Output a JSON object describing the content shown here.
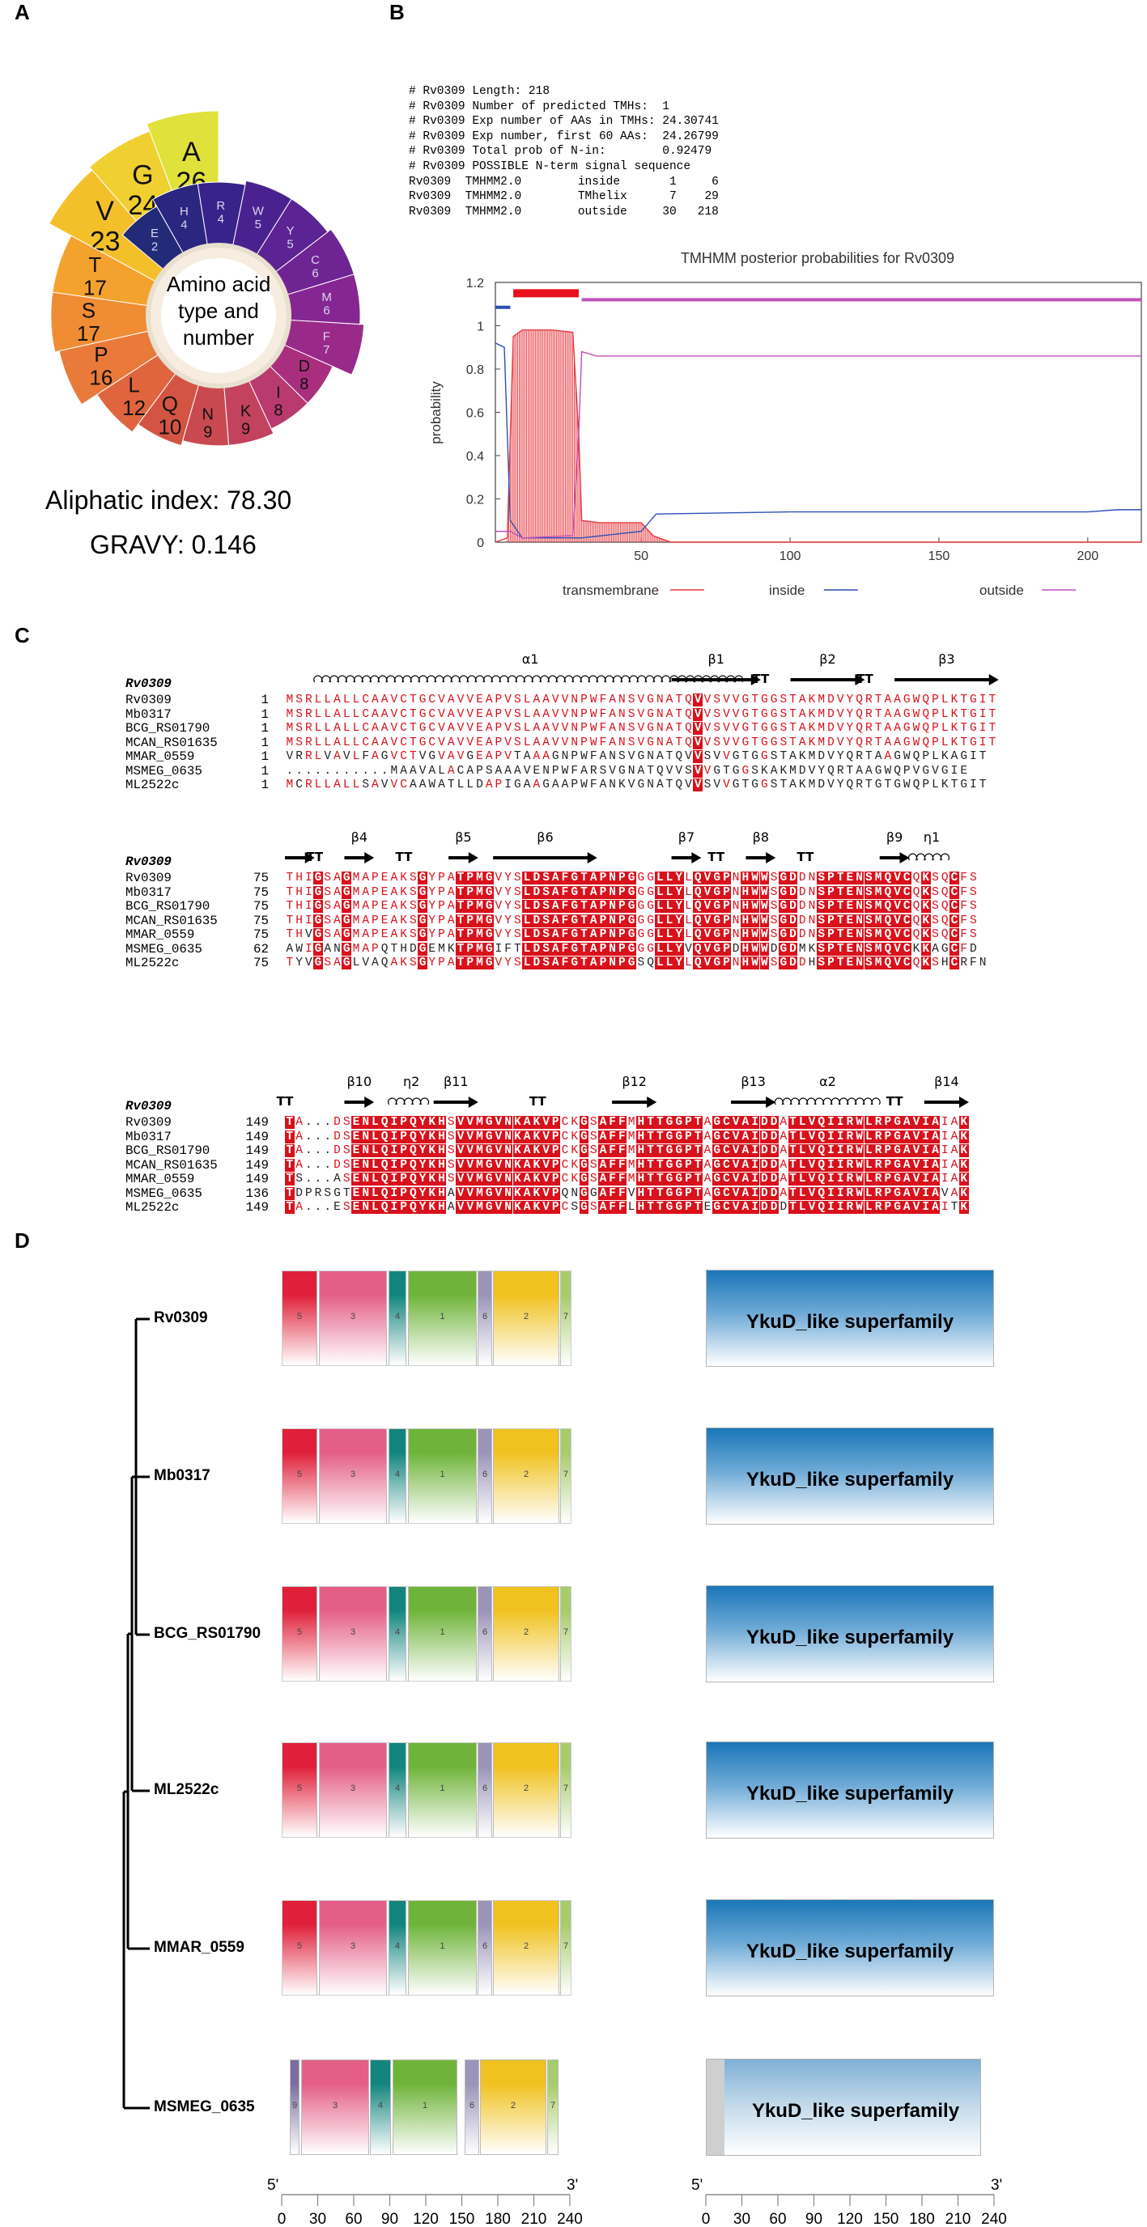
{
  "panels": {
    "a": "A",
    "b": "B",
    "c": "C",
    "d": "D"
  },
  "panelA": {
    "center_text": [
      "Amino acid",
      "type and",
      "number"
    ],
    "aliphatic_index": "Aliphatic index: 78.30",
    "gravy": "GRAVY: 0.146",
    "amino_acids": [
      {
        "aa": "A",
        "count": "26",
        "value": 26,
        "color": "#e0e13a"
      },
      {
        "aa": "G",
        "count": "24",
        "value": 24,
        "color": "#f0d030"
      },
      {
        "aa": "V",
        "count": "23",
        "value": 23,
        "color": "#f4c02a"
      },
      {
        "aa": "T",
        "count": "17",
        "value": 17,
        "color": "#f3a22e"
      },
      {
        "aa": "S",
        "count": "17",
        "value": 17,
        "color": "#ef8c34"
      },
      {
        "aa": "P",
        "count": "16",
        "value": 16,
        "color": "#ea7a3a"
      },
      {
        "aa": "L",
        "count": "12",
        "value": 12,
        "color": "#e0653e"
      },
      {
        "aa": "Q",
        "count": "10",
        "value": 10,
        "color": "#d45444"
      },
      {
        "aa": "N",
        "count": "9",
        "value": 9,
        "color": "#c84a50"
      },
      {
        "aa": "K",
        "count": "9",
        "value": 9,
        "color": "#c3425e"
      },
      {
        "aa": "I",
        "count": "8",
        "value": 8,
        "color": "#b83a6e"
      },
      {
        "aa": "D",
        "count": "8",
        "value": 8,
        "color": "#a92f7e"
      },
      {
        "aa": "F",
        "count": "7",
        "value": 7,
        "color": "#9a2a8a"
      },
      {
        "aa": "M",
        "count": "6",
        "value": 6,
        "color": "#852692"
      },
      {
        "aa": "C",
        "count": "6",
        "value": 6,
        "color": "#6f2494"
      },
      {
        "aa": "Y",
        "count": "5",
        "value": 5,
        "color": "#5b2393"
      },
      {
        "aa": "W",
        "count": "5",
        "value": 5,
        "color": "#4a2290"
      },
      {
        "aa": "R",
        "count": "4",
        "value": 4,
        "color": "#37238a"
      },
      {
        "aa": "H",
        "count": "4",
        "value": 4,
        "color": "#2b2680"
      },
      {
        "aa": "E",
        "count": "2",
        "value": 2,
        "color": "#232a78"
      }
    ]
  },
  "panelB": {
    "tmhmm_text": [
      "# Rv0309 Length: 218",
      "# Rv0309 Number of predicted TMHs:  1",
      "# Rv0309 Exp number of AAs in TMHs: 24.30741",
      "# Rv0309 Exp number, first 60 AAs:  24.26799",
      "# Rv0309 Total prob of N-in:        0.92479",
      "# Rv0309 POSSIBLE N-term signal sequence",
      "Rv0309  TMHMM2.0        inside       1     6",
      "Rv0309  TMHMM2.0        TMhelix      7    29",
      "Rv0309  TMHMM2.0        outside     30   218"
    ],
    "chart_data": {
      "type": "line",
      "title": "TMHMM posterior probabilities for Rv0309",
      "ylabel": "probability",
      "xlabel": "",
      "xlim": [
        1,
        218
      ],
      "ylim": [
        0,
        1.2
      ],
      "yticks": [
        "0",
        "0.2",
        "0.4",
        "0.6",
        "0.8",
        "1",
        "1.2"
      ],
      "xticks": [
        "50",
        "100",
        "150",
        "200"
      ],
      "xtick_values": [
        50,
        100,
        150,
        200
      ],
      "ytick_values": [
        0,
        0.2,
        0.4,
        0.6,
        0.8,
        1,
        1.2
      ],
      "legend": [
        "transmembrane",
        "inside",
        "outside"
      ],
      "legend_colors": [
        "#e8393f",
        "#2d4fb8",
        "#c04fb8"
      ],
      "series": [
        {
          "name": "transmembrane",
          "color": "#e8393f",
          "points": [
            [
              1,
              0
            ],
            [
              5,
              0.02
            ],
            [
              7,
              0.95
            ],
            [
              10,
              0.98
            ],
            [
              20,
              0.98
            ],
            [
              27,
              0.97
            ],
            [
              29,
              0.5
            ],
            [
              30,
              0.1
            ],
            [
              36,
              0.09
            ],
            [
              50,
              0.09
            ],
            [
              54,
              0.03
            ],
            [
              60,
              0
            ],
            [
              218,
              0
            ]
          ]
        },
        {
          "name": "inside",
          "color": "#2d4fb8",
          "points": [
            [
              1,
              0.92
            ],
            [
              4,
              0.9
            ],
            [
              5,
              0.5
            ],
            [
              6,
              0.1
            ],
            [
              10,
              0.02
            ],
            [
              30,
              0.02
            ],
            [
              50,
              0.05
            ],
            [
              55,
              0.13
            ],
            [
              100,
              0.14
            ],
            [
              180,
              0.14
            ],
            [
              200,
              0.14
            ],
            [
              210,
              0.15
            ],
            [
              218,
              0.15
            ]
          ]
        },
        {
          "name": "outside",
          "color": "#c04fb8",
          "points": [
            [
              1,
              0.05
            ],
            [
              6,
              0.05
            ],
            [
              10,
              0.02
            ],
            [
              27,
              0.03
            ],
            [
              29,
              0.5
            ],
            [
              30,
              0.88
            ],
            [
              35,
              0.86
            ],
            [
              55,
              0.86
            ],
            [
              218,
              0.86
            ]
          ]
        }
      ],
      "topology_bars": [
        {
          "label": "inside",
          "start": 1,
          "end": 6,
          "color": "#2d4fb8"
        },
        {
          "label": "TMhelix",
          "start": 7,
          "end": 29,
          "color": "#e8101c"
        },
        {
          "label": "outside",
          "start": 30,
          "end": 218,
          "color": "#c04fb8"
        }
      ]
    }
  },
  "panelC": {
    "ref": "Rv0309",
    "blocks": [
      {
        "ss_labels": [
          "α1",
          "β1",
          "TT",
          "β2",
          "TT",
          "β3"
        ],
        "rows": [
          {
            "name": "Rv0309",
            "start": "1",
            "seq": "MSRLLALLCAAVCTGCVAVVEAPVSLAAVVNPWFANSVGNATQVVSVVGTGGSTAKMDVYQRTAAGWQPLKTGIT"
          },
          {
            "name": "Mb0317",
            "start": "1",
            "seq": "MSRLLALLCAAVCTGCVAVVEAPVSLAAVVNPWFANSVGNATQVVSVVGTGGSTAKMDVYQRTAAGWQPLKTGIT"
          },
          {
            "name": "BCG_RS01790",
            "start": "1",
            "seq": "MSRLLALLCAAVCTGCVAVVEAPVSLAAVVNPWFANSVGNATQVVSVVGTGGSTAKMDVYQRTAAGWQPLKTGIT"
          },
          {
            "name": "MCAN_RS01635",
            "start": "1",
            "seq": "MSRLLALLCAAVCTGCVAVVEAPVSLAAVVNPWFANSVGNATQVVSVVGTGGSTAKMDVYQRTAAGWQPLKTGIT"
          },
          {
            "name": "MMAR_0559",
            "start": "1",
            "seq": "VRRLVAVLFAGVCTVGVAVGEAPVTAAAGNPWFANSVGNATQVVSVVGTGGSTAKMDVYQRTAAGWQPLKAGIT"
          },
          {
            "name": "MSMEG_0635",
            "start": "1",
            "seq": "...........MAAVALACAPSAAAVENPWFARSVGNATQVVSVVGTGGSKAKMDVYQRTAAGWQPVGVGIE"
          },
          {
            "name": "ML2522c",
            "start": "1",
            "seq": "MCRLLALLSAVVCAAWATLLDAPIGAAGAAPWFANKVGNATQVVSVVGTGGSTAKMDVYQRTGTGWQPLKTGIT"
          }
        ]
      },
      {
        "ss_labels": [
          "TT",
          "β4",
          "TT",
          "β5",
          "β6",
          "β7",
          "TT",
          "β8",
          "TT",
          "β9",
          "η1"
        ],
        "rows": [
          {
            "name": "Rv0309",
            "start": "75",
            "seq": "THIGSAGMAPEAKSGYPATPMGVYSLDSAFGTAPNPGGGLLYLQVGPNHWWSGDDNSPTENSMQVCQKSQCFS"
          },
          {
            "name": "Mb0317",
            "start": "75",
            "seq": "THIGSAGMAPEAKSGYPATPMGVYSLDSAFGTAPNPGGGLLYLQVGPNHWWSGDDNSPTENSMQVCQKSQCFS"
          },
          {
            "name": "BCG_RS01790",
            "start": "75",
            "seq": "THIGSAGMAPEAKSGYPATPMGVYSLDSAFGTAPNPGGGLLYLQVGPNHWWSGDDNSPTENSMQVCQKSQCFS"
          },
          {
            "name": "MCAN_RS01635",
            "start": "75",
            "seq": "THIGSAGMAPEAKSGYPATPMGVYSLDSAFGTAPNPGGGLLYLQVGPNHWWSGDDNSPTENSMQVCQKSQCFS"
          },
          {
            "name": "MMAR_0559",
            "start": "75",
            "seq": "THVGSAGMAPEAKSGYPATPMGVYSLDSAFGTAPNPGGGLLYLQVGPNHWWSGDDNSPTENSMQVCQKSQCFS"
          },
          {
            "name": "MSMEG_0635",
            "start": "62",
            "seq": "AWIGANGMAPQTHDGEMKTPMGIFTLDSAFGTAPNPGGGLLYVQVGPDHWWDGDMKSPTENSMQVCKKAGCFD"
          },
          {
            "name": "ML2522c",
            "start": "75",
            "seq": "TYVGSAGLVAQAKSGYPATPMGVYSLDSAFGTAPNPGSQLLYLQVGPNHWWSGDDHSPTENSMQVCQKSHCRFN"
          }
        ]
      },
      {
        "ss_labels": [
          "TT",
          "β10",
          "η2",
          "β11",
          "TT",
          "β12",
          "β13",
          "α2",
          "TT",
          "β14"
        ],
        "rows": [
          {
            "name": "Rv0309",
            "start": "149",
            "seq": "TA...DSENLQIPQYKHSVVMGVNKAKVPCKGSAFFMHTTGGPTAGCVAIDDATLVQIIRWLRPGAVIAIAK"
          },
          {
            "name": "Mb0317",
            "start": "149",
            "seq": "TA...DSENLQIPQYKHSVVMGVNKAKVPCKGSAFFMHTTGGPTAGCVAIDDATLVQIIRWLRPGAVIAIAK"
          },
          {
            "name": "BCG_RS01790",
            "start": "149",
            "seq": "TA...DSENLQIPQYKHSVVMGVNKAKVPCKGSAFFMHTTGGPTAGCVAIDDATLVQIIRWLRPGAVIAIAK"
          },
          {
            "name": "MCAN_RS01635",
            "start": "149",
            "seq": "TA...DSENLQIPQYKHSVVMGVNKAKVPCKGSAFFMHTTGGPTAGCVAIDDATLVQIIRWLRPGAVIAIAK"
          },
          {
            "name": "MMAR_0559",
            "start": "149",
            "seq": "TS...ASENLQIPQYKHSVVMGVNKAKVPCKGSAFFMHTTGGPTAGCVAIDDATLVQIIRWLRPGAVIAIAK"
          },
          {
            "name": "MSMEG_0635",
            "start": "136",
            "seq": "TDPRSGTENLQIPQYKHAVVMGVNKAKVPQNGGAFFVHTTGGPTAGCVAIDDATLVQIIRWLRPGAVIAVAK"
          },
          {
            "name": "ML2522c",
            "start": "149",
            "seq": "TA...ESENLQIPQYKHAVVMGVNKAKVPCSGSAFFLHTTGGPTEGCVAIDDDTLVQIIRWLRPGAVIAITK"
          }
        ]
      }
    ]
  },
  "panelD": {
    "species": [
      "Rv0309",
      "Mb0317",
      "BCG_RS01790",
      "ML2522c",
      "MMAR_0559",
      "MSMEG_0635"
    ],
    "superfamily_label": "YkuD_like superfamily",
    "motifs": [
      {
        "id": "5",
        "color": "#e0203a"
      },
      {
        "id": "3",
        "color": "#e45e88"
      },
      {
        "id": "4",
        "color": "#13857e"
      },
      {
        "id": "1",
        "color": "#6fb43a"
      },
      {
        "id": "6",
        "color": "#9a95b8"
      },
      {
        "id": "2",
        "color": "#f0c220"
      },
      {
        "id": "7",
        "color": "#a7cc6a"
      },
      {
        "id": "9",
        "color": "#7a6ea0"
      }
    ],
    "axis_ends": [
      "5'",
      "3'"
    ],
    "axis_ticks": [
      "0",
      "30",
      "60",
      "90",
      "120",
      "150",
      "180",
      "210",
      "240"
    ],
    "axis_values": [
      0,
      30,
      60,
      90,
      120,
      150,
      180,
      210,
      240
    ]
  }
}
